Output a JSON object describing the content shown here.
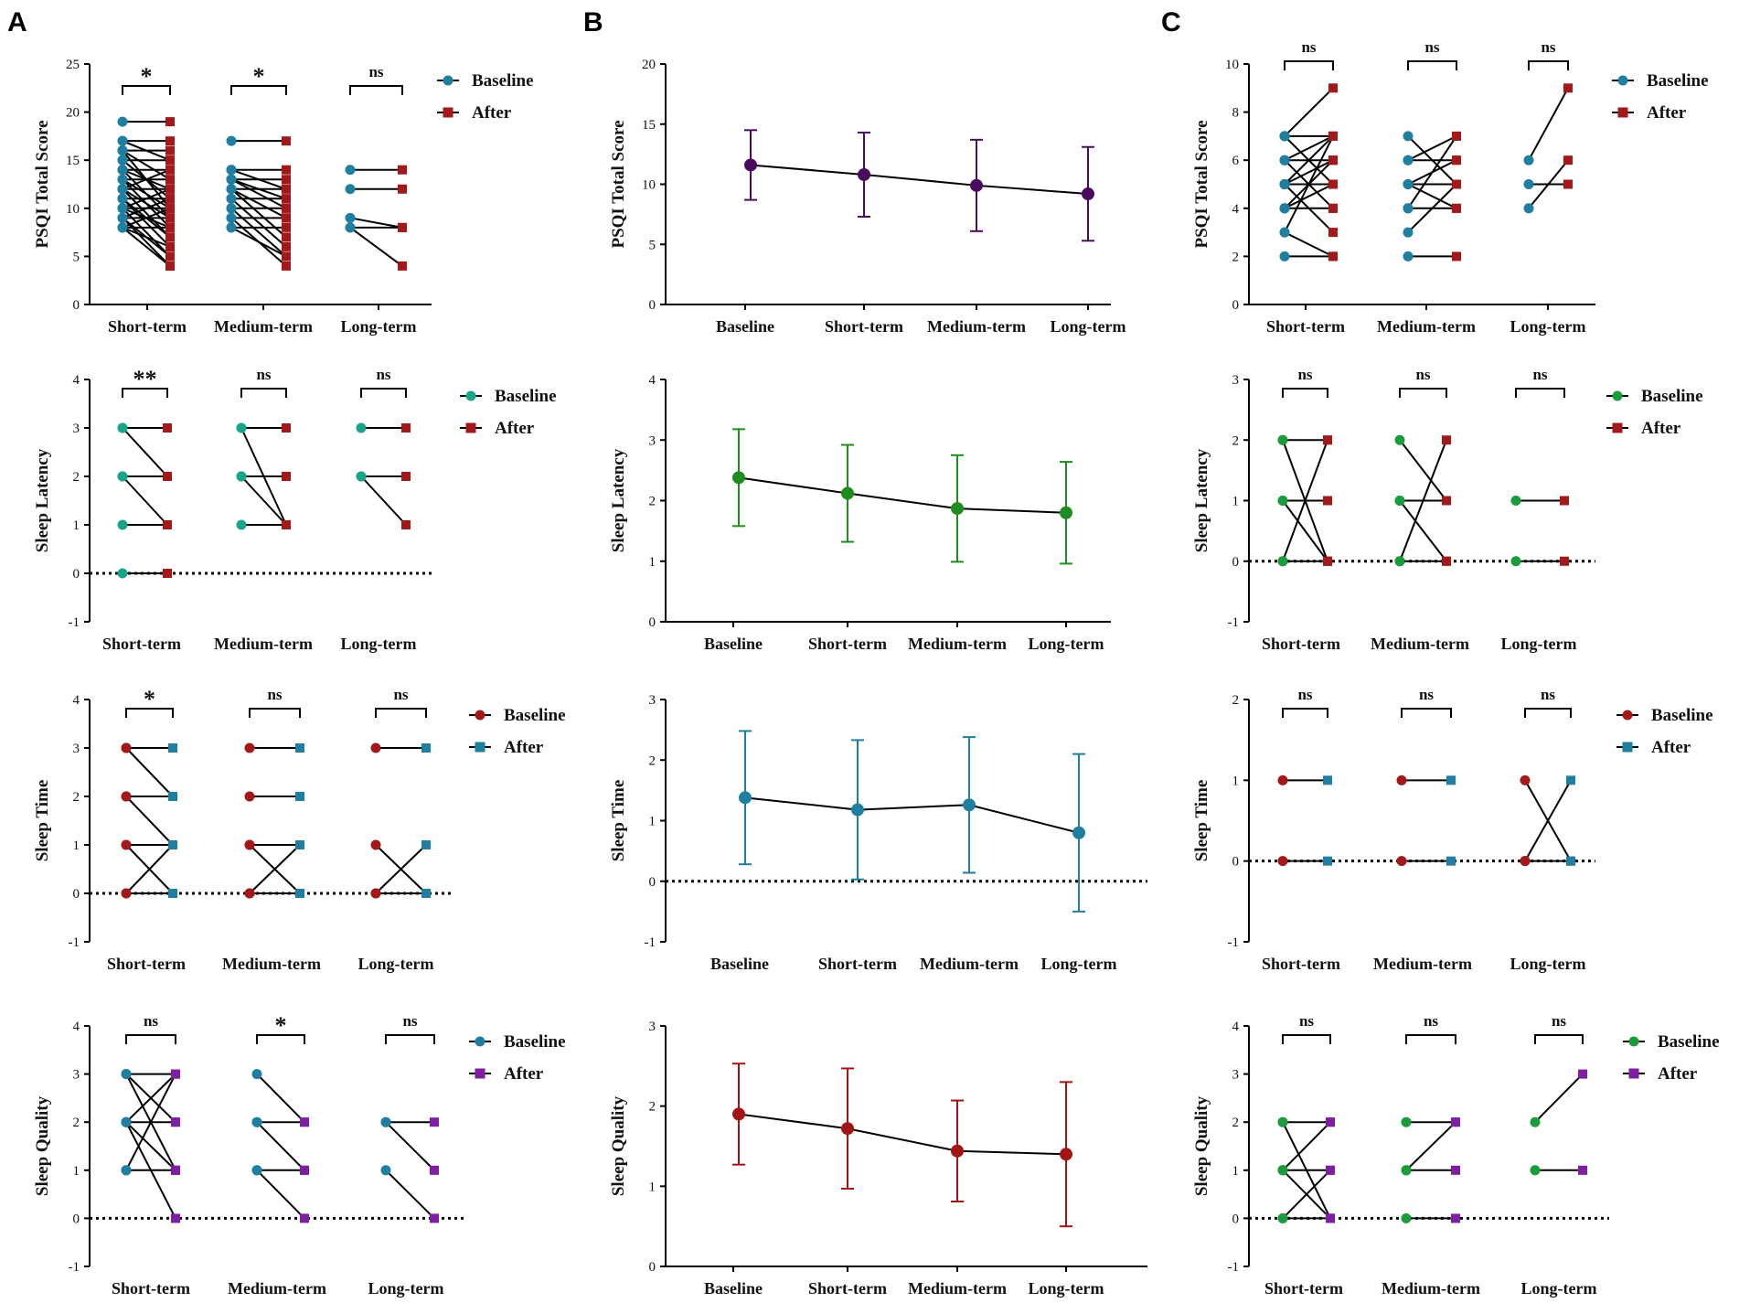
{
  "panel_labels": [
    "A",
    "B",
    "C"
  ],
  "colors": {
    "teal": "#1f7fa0",
    "red": "#a31919",
    "green": "#1b9c3a",
    "purple": "#7e1ea0",
    "darkpurple": "#4a0a5e",
    "tealgreen": "#1aa58a",
    "darkred": "#a31515",
    "greenB": "#1e8c1e"
  },
  "chart_data": [
    {
      "id": "A1",
      "panel": "A",
      "type": "paired-dot",
      "ylabel": "PSQI Total Score",
      "ylim": [
        0,
        25
      ],
      "yticks": [
        0,
        5,
        10,
        15,
        20,
        25
      ],
      "categories": [
        "Short-term",
        "Medium-term",
        "Long-term"
      ],
      "legend": [
        "Baseline",
        "After"
      ],
      "colors": [
        "teal",
        "red"
      ],
      "significance": [
        "*",
        "*",
        "ns"
      ],
      "zero_line": false,
      "pairs": [
        [
          [
            19,
            19
          ],
          [
            17,
            17
          ],
          [
            16,
            16
          ],
          [
            15,
            15
          ],
          [
            14,
            14
          ],
          [
            13,
            13
          ],
          [
            12,
            12
          ],
          [
            11,
            11
          ],
          [
            10,
            10
          ],
          [
            9,
            9
          ],
          [
            8,
            8
          ],
          [
            17,
            15
          ],
          [
            16,
            13
          ],
          [
            15,
            11
          ],
          [
            14,
            9
          ],
          [
            13,
            8
          ],
          [
            12,
            7
          ],
          [
            11,
            6
          ],
          [
            10,
            5
          ],
          [
            9,
            4
          ],
          [
            8,
            6
          ],
          [
            13,
            10
          ],
          [
            12,
            9
          ],
          [
            11,
            7
          ],
          [
            10,
            8
          ],
          [
            9,
            5
          ],
          [
            8,
            4
          ],
          [
            14,
            12
          ],
          [
            16,
            10
          ],
          [
            12,
            14
          ],
          [
            10,
            12
          ],
          [
            9,
            11
          ],
          [
            8,
            10
          ]
        ],
        [
          [
            17,
            17
          ],
          [
            14,
            14
          ],
          [
            13,
            13
          ],
          [
            12,
            12
          ],
          [
            11,
            11
          ],
          [
            10,
            10
          ],
          [
            9,
            9
          ],
          [
            8,
            8
          ],
          [
            14,
            12
          ],
          [
            13,
            10
          ],
          [
            12,
            7
          ],
          [
            11,
            6
          ],
          [
            10,
            5
          ],
          [
            9,
            4
          ],
          [
            8,
            5
          ],
          [
            13,
            11
          ],
          [
            12,
            9
          ]
        ],
        [
          [
            14,
            14
          ],
          [
            12,
            12
          ],
          [
            9,
            8
          ],
          [
            8,
            4
          ],
          [
            8,
            8
          ]
        ]
      ]
    },
    {
      "id": "A2",
      "panel": "A",
      "type": "paired-dot",
      "ylabel": "Sleep Latency",
      "ylim": [
        -1,
        4
      ],
      "yticks": [
        -1,
        0,
        1,
        2,
        3,
        4
      ],
      "categories": [
        "Short-term",
        "Medium-term",
        "Long-term"
      ],
      "legend": [
        "Baseline",
        "After"
      ],
      "colors": [
        "tealgreen",
        "red"
      ],
      "significance": [
        "**",
        "ns",
        "ns"
      ],
      "zero_line": true,
      "pairs": [
        [
          [
            3,
            3
          ],
          [
            3,
            2
          ],
          [
            2,
            2
          ],
          [
            2,
            1
          ],
          [
            1,
            1
          ],
          [
            0,
            0
          ]
        ],
        [
          [
            3,
            3
          ],
          [
            3,
            1
          ],
          [
            2,
            2
          ],
          [
            2,
            1
          ],
          [
            1,
            1
          ]
        ],
        [
          [
            3,
            3
          ],
          [
            2,
            2
          ],
          [
            2,
            1
          ]
        ]
      ]
    },
    {
      "id": "A3",
      "panel": "A",
      "type": "paired-dot",
      "ylabel": "Sleep Time",
      "ylim": [
        -1,
        4
      ],
      "yticks": [
        -1,
        0,
        1,
        2,
        3,
        4
      ],
      "categories": [
        "Short-term",
        "Medium-term",
        "Long-term"
      ],
      "legend": [
        "Baseline",
        "After"
      ],
      "colors": [
        "red",
        "teal"
      ],
      "significance": [
        "*",
        "ns",
        "ns"
      ],
      "zero_line": true,
      "pairs": [
        [
          [
            3,
            3
          ],
          [
            3,
            2
          ],
          [
            2,
            2
          ],
          [
            2,
            1
          ],
          [
            1,
            1
          ],
          [
            1,
            0
          ],
          [
            0,
            1
          ],
          [
            0,
            0
          ]
        ],
        [
          [
            3,
            3
          ],
          [
            2,
            2
          ],
          [
            1,
            1
          ],
          [
            1,
            0
          ],
          [
            0,
            1
          ],
          [
            0,
            0
          ]
        ],
        [
          [
            3,
            3
          ],
          [
            1,
            0
          ],
          [
            0,
            1
          ],
          [
            0,
            0
          ]
        ]
      ]
    },
    {
      "id": "A4",
      "panel": "A",
      "type": "paired-dot",
      "ylabel": "Sleep Quality",
      "ylim": [
        -1,
        4
      ],
      "yticks": [
        -1,
        0,
        1,
        2,
        3,
        4
      ],
      "categories": [
        "Short-term",
        "Medium-term",
        "Long-term"
      ],
      "legend": [
        "Baseline",
        "After"
      ],
      "colors": [
        "teal",
        "purple"
      ],
      "significance": [
        "ns",
        "*",
        "ns"
      ],
      "zero_line": true,
      "pairs": [
        [
          [
            3,
            3
          ],
          [
            3,
            2
          ],
          [
            3,
            1
          ],
          [
            2,
            2
          ],
          [
            2,
            1
          ],
          [
            2,
            0
          ],
          [
            1,
            1
          ],
          [
            1,
            3
          ],
          [
            2,
            3
          ]
        ],
        [
          [
            3,
            2
          ],
          [
            2,
            2
          ],
          [
            2,
            1
          ],
          [
            1,
            1
          ],
          [
            1,
            0
          ]
        ],
        [
          [
            2,
            2
          ],
          [
            2,
            1
          ],
          [
            1,
            0
          ]
        ]
      ]
    },
    {
      "id": "B1",
      "panel": "B",
      "type": "line-errorbar",
      "ylabel": "PSQI Total Score",
      "ylim": [
        0,
        20
      ],
      "yticks": [
        0,
        5,
        10,
        15,
        20
      ],
      "categories": [
        "Baseline",
        "Short-term",
        "Medium-term",
        "Long-term"
      ],
      "values": [
        11.6,
        10.8,
        9.9,
        9.2
      ],
      "errors": [
        2.9,
        3.5,
        3.8,
        3.9
      ],
      "color": "darkpurple",
      "zero_line": false
    },
    {
      "id": "B2",
      "panel": "B",
      "type": "line-errorbar",
      "ylabel": "Sleep Latency",
      "ylim": [
        0,
        4
      ],
      "yticks": [
        0,
        1,
        2,
        3,
        4
      ],
      "categories": [
        "Baseline",
        "Short-term",
        "Medium-term",
        "Long-term"
      ],
      "values": [
        2.38,
        2.12,
        1.87,
        1.8
      ],
      "errors": [
        0.8,
        0.8,
        0.88,
        0.84
      ],
      "color": "greenB",
      "zero_line": false
    },
    {
      "id": "B3",
      "panel": "B",
      "type": "line-errorbar",
      "ylabel": "Sleep Time",
      "ylim": [
        -1,
        3
      ],
      "yticks": [
        -1,
        0,
        1,
        2,
        3
      ],
      "categories": [
        "Baseline",
        "Short-term",
        "Medium-term",
        "Long-term"
      ],
      "values": [
        1.38,
        1.18,
        1.26,
        0.8
      ],
      "errors": [
        1.1,
        1.15,
        1.12,
        1.3
      ],
      "color": "teal",
      "zero_line": true
    },
    {
      "id": "B4",
      "panel": "B",
      "type": "line-errorbar",
      "ylabel": "Sleep Quality",
      "ylim": [
        0,
        3
      ],
      "yticks": [
        0,
        1,
        2,
        3
      ],
      "categories": [
        "Baseline",
        "Short-term",
        "Medium-term",
        "Long-term"
      ],
      "values": [
        1.9,
        1.72,
        1.44,
        1.4
      ],
      "errors": [
        0.63,
        0.75,
        0.63,
        0.9
      ],
      "color": "darkred",
      "zero_line": false
    },
    {
      "id": "C1",
      "panel": "C",
      "type": "paired-dot",
      "ylabel": "PSQI Total Score",
      "ylim": [
        0,
        10
      ],
      "yticks": [
        0,
        2,
        4,
        6,
        8,
        10
      ],
      "categories": [
        "Short-term",
        "Medium-term",
        "Long-term"
      ],
      "legend": [
        "Baseline",
        "After"
      ],
      "colors": [
        "teal",
        "red"
      ],
      "significance": [
        "ns",
        "ns",
        "ns"
      ],
      "zero_line": false,
      "pairs": [
        [
          [
            7,
            9
          ],
          [
            7,
            7
          ],
          [
            7,
            5
          ],
          [
            6,
            7
          ],
          [
            6,
            6
          ],
          [
            6,
            4
          ],
          [
            5,
            6
          ],
          [
            5,
            5
          ],
          [
            5,
            3
          ],
          [
            4,
            5
          ],
          [
            4,
            4
          ],
          [
            3,
            7
          ],
          [
            3,
            2
          ],
          [
            2,
            2
          ],
          [
            4,
            6
          ],
          [
            5,
            7
          ]
        ],
        [
          [
            7,
            5
          ],
          [
            6,
            7
          ],
          [
            6,
            6
          ],
          [
            5,
            5
          ],
          [
            5,
            4
          ],
          [
            4,
            7
          ],
          [
            4,
            4
          ],
          [
            3,
            5
          ],
          [
            2,
            2
          ],
          [
            5,
            6
          ]
        ],
        [
          [
            6,
            9
          ],
          [
            5,
            5
          ],
          [
            4,
            6
          ]
        ]
      ]
    },
    {
      "id": "C2",
      "panel": "C",
      "type": "paired-dot",
      "ylabel": "Sleep Latency",
      "ylim": [
        -1,
        3
      ],
      "yticks": [
        -1,
        0,
        1,
        2,
        3
      ],
      "categories": [
        "Short-term",
        "Medium-term",
        "Long-term"
      ],
      "legend": [
        "Baseline",
        "After"
      ],
      "colors": [
        "green",
        "red"
      ],
      "significance": [
        "ns",
        "ns",
        "ns"
      ],
      "zero_line": true,
      "pairs": [
        [
          [
            2,
            2
          ],
          [
            2,
            0
          ],
          [
            1,
            1
          ],
          [
            0,
            2
          ],
          [
            0,
            0
          ],
          [
            1,
            0
          ]
        ],
        [
          [
            2,
            1
          ],
          [
            1,
            1
          ],
          [
            1,
            0
          ],
          [
            0,
            2
          ],
          [
            0,
            0
          ]
        ],
        [
          [
            1,
            1
          ],
          [
            0,
            0
          ]
        ]
      ]
    },
    {
      "id": "C3",
      "panel": "C",
      "type": "paired-dot",
      "ylabel": "Sleep Time",
      "ylim": [
        -1,
        2
      ],
      "yticks": [
        -1,
        0,
        1,
        2
      ],
      "categories": [
        "Short-term",
        "Medium-term",
        "Long-term"
      ],
      "legend": [
        "Baseline",
        "After"
      ],
      "colors": [
        "red",
        "teal"
      ],
      "significance": [
        "ns",
        "ns",
        "ns"
      ],
      "zero_line": true,
      "pairs": [
        [
          [
            1,
            1
          ],
          [
            0,
            0
          ]
        ],
        [
          [
            1,
            1
          ],
          [
            0,
            0
          ]
        ],
        [
          [
            1,
            0
          ],
          [
            0,
            1
          ],
          [
            0,
            0
          ]
        ]
      ]
    },
    {
      "id": "C4",
      "panel": "C",
      "type": "paired-dot",
      "ylabel": "Sleep Quality",
      "ylim": [
        -1,
        4
      ],
      "yticks": [
        -1,
        0,
        1,
        2,
        3,
        4
      ],
      "categories": [
        "Short-term",
        "Medium-term",
        "Long-term"
      ],
      "legend": [
        "Baseline",
        "After"
      ],
      "colors": [
        "green",
        "purple"
      ],
      "significance": [
        "ns",
        "ns",
        "ns"
      ],
      "zero_line": true,
      "pairs": [
        [
          [
            2,
            2
          ],
          [
            2,
            0
          ],
          [
            1,
            1
          ],
          [
            1,
            2
          ],
          [
            0,
            1
          ],
          [
            0,
            0
          ],
          [
            1,
            0
          ]
        ],
        [
          [
            2,
            2
          ],
          [
            1,
            1
          ],
          [
            1,
            2
          ],
          [
            0,
            0
          ]
        ],
        [
          [
            2,
            3
          ],
          [
            1,
            1
          ]
        ]
      ]
    }
  ]
}
